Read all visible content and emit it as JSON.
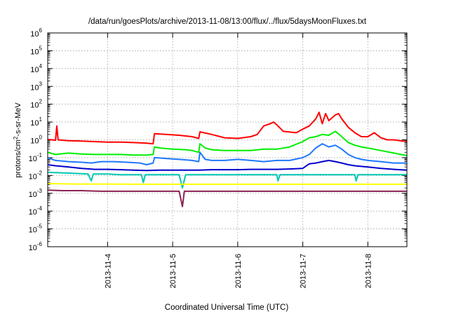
{
  "chart_data": {
    "type": "line",
    "title": "/data/run/goesPlots/archive/2013-11-08/13:00/flux/../flux/5daysMoonFluxes.txt",
    "xlabel": "Coordinated Universal Time (UTC)",
    "ylabel": {
      "prefix": "protons/cm",
      "sup": "2",
      "suffix": "-s-sr-MeV"
    },
    "x_tick_labels": [
      "2013-11-4",
      "2013-11-5",
      "2013-11-6",
      "2013-11-7",
      "2013-11-8"
    ],
    "x_ticks": [
      4,
      5,
      6,
      7,
      8
    ],
    "xlim": [
      3.08,
      8.6
    ],
    "y_scale": "log",
    "ylim_exp": [
      -6,
      6
    ],
    "y_tick_exponents": [
      -6,
      -5,
      -4,
      -3,
      -2,
      -1,
      0,
      1,
      2,
      3,
      4,
      5,
      6
    ],
    "grid": true,
    "series": [
      {
        "color": "#ff0000",
        "points": [
          [
            3.08,
            1.05
          ],
          [
            3.15,
            1.0
          ],
          [
            3.2,
            0.95
          ],
          [
            3.22,
            6.0
          ],
          [
            3.24,
            1.0
          ],
          [
            3.4,
            0.9
          ],
          [
            3.6,
            0.85
          ],
          [
            3.8,
            0.8
          ],
          [
            4.0,
            0.75
          ],
          [
            4.2,
            0.75
          ],
          [
            4.4,
            0.7
          ],
          [
            4.6,
            0.65
          ],
          [
            4.7,
            0.6
          ],
          [
            4.72,
            2.2
          ],
          [
            4.9,
            2.0
          ],
          [
            5.1,
            1.8
          ],
          [
            5.3,
            1.5
          ],
          [
            5.4,
            1.2
          ],
          [
            5.42,
            2.8
          ],
          [
            5.6,
            2.0
          ],
          [
            5.8,
            1.3
          ],
          [
            6.0,
            1.2
          ],
          [
            6.2,
            1.5
          ],
          [
            6.3,
            2.0
          ],
          [
            6.4,
            6.0
          ],
          [
            6.5,
            8.0
          ],
          [
            6.55,
            10.0
          ],
          [
            6.6,
            7.0
          ],
          [
            6.7,
            3.0
          ],
          [
            6.9,
            2.5
          ],
          [
            7.0,
            4.0
          ],
          [
            7.1,
            6.0
          ],
          [
            7.2,
            15.0
          ],
          [
            7.25,
            35.0
          ],
          [
            7.3,
            8.0
          ],
          [
            7.35,
            30.0
          ],
          [
            7.4,
            12.0
          ],
          [
            7.5,
            25.0
          ],
          [
            7.55,
            30.0
          ],
          [
            7.6,
            15.0
          ],
          [
            7.7,
            5.0
          ],
          [
            7.8,
            2.5
          ],
          [
            7.9,
            1.5
          ],
          [
            8.0,
            1.5
          ],
          [
            8.1,
            2.5
          ],
          [
            8.2,
            1.3
          ],
          [
            8.3,
            1.0
          ],
          [
            8.4,
            1.0
          ],
          [
            8.5,
            0.9
          ],
          [
            8.6,
            0.8
          ]
        ]
      },
      {
        "color": "#00ee00",
        "points": [
          [
            3.08,
            0.2
          ],
          [
            3.2,
            0.15
          ],
          [
            3.4,
            0.18
          ],
          [
            3.6,
            0.16
          ],
          [
            3.8,
            0.15
          ],
          [
            4.0,
            0.15
          ],
          [
            4.2,
            0.15
          ],
          [
            4.4,
            0.14
          ],
          [
            4.6,
            0.14
          ],
          [
            4.7,
            0.15
          ],
          [
            4.72,
            0.4
          ],
          [
            4.8,
            0.35
          ],
          [
            5.0,
            0.3
          ],
          [
            5.2,
            0.28
          ],
          [
            5.3,
            0.25
          ],
          [
            5.4,
            0.2
          ],
          [
            5.42,
            0.6
          ],
          [
            5.5,
            0.35
          ],
          [
            5.6,
            0.28
          ],
          [
            5.8,
            0.25
          ],
          [
            6.0,
            0.25
          ],
          [
            6.2,
            0.25
          ],
          [
            6.4,
            0.3
          ],
          [
            6.6,
            0.3
          ],
          [
            6.8,
            0.4
          ],
          [
            7.0,
            0.8
          ],
          [
            7.1,
            1.3
          ],
          [
            7.2,
            1.5
          ],
          [
            7.3,
            2.0
          ],
          [
            7.4,
            1.8
          ],
          [
            7.5,
            3.0
          ],
          [
            7.6,
            1.5
          ],
          [
            7.7,
            0.7
          ],
          [
            7.8,
            0.5
          ],
          [
            7.9,
            0.4
          ],
          [
            8.0,
            0.35
          ],
          [
            8.2,
            0.25
          ],
          [
            8.4,
            0.18
          ],
          [
            8.6,
            0.13
          ]
        ]
      },
      {
        "color": "#1e78ff",
        "points": [
          [
            3.08,
            0.1
          ],
          [
            3.2,
            0.07
          ],
          [
            3.4,
            0.06
          ],
          [
            3.6,
            0.055
          ],
          [
            3.75,
            0.05
          ],
          [
            3.9,
            0.06
          ],
          [
            4.1,
            0.06
          ],
          [
            4.3,
            0.055
          ],
          [
            4.5,
            0.05
          ],
          [
            4.6,
            0.04
          ],
          [
            4.7,
            0.05
          ],
          [
            4.72,
            0.1
          ],
          [
            4.9,
            0.09
          ],
          [
            5.1,
            0.08
          ],
          [
            5.3,
            0.07
          ],
          [
            5.4,
            0.06
          ],
          [
            5.42,
            0.2
          ],
          [
            5.5,
            0.08
          ],
          [
            5.6,
            0.07
          ],
          [
            5.8,
            0.07
          ],
          [
            6.0,
            0.08
          ],
          [
            6.2,
            0.07
          ],
          [
            6.4,
            0.06
          ],
          [
            6.6,
            0.07
          ],
          [
            6.8,
            0.07
          ],
          [
            7.0,
            0.1
          ],
          [
            7.1,
            0.15
          ],
          [
            7.2,
            0.35
          ],
          [
            7.3,
            0.6
          ],
          [
            7.4,
            0.4
          ],
          [
            7.5,
            0.5
          ],
          [
            7.6,
            0.3
          ],
          [
            7.7,
            0.15
          ],
          [
            7.8,
            0.1
          ],
          [
            7.9,
            0.08
          ],
          [
            8.0,
            0.07
          ],
          [
            8.2,
            0.06
          ],
          [
            8.4,
            0.05
          ],
          [
            8.6,
            0.05
          ]
        ]
      },
      {
        "color": "#0000cd",
        "points": [
          [
            3.08,
            0.04
          ],
          [
            3.2,
            0.035
          ],
          [
            3.4,
            0.03
          ],
          [
            3.6,
            0.025
          ],
          [
            3.8,
            0.022
          ],
          [
            4.0,
            0.022
          ],
          [
            4.2,
            0.021
          ],
          [
            4.4,
            0.02
          ],
          [
            4.6,
            0.019
          ],
          [
            4.8,
            0.02
          ],
          [
            5.0,
            0.02
          ],
          [
            5.2,
            0.02
          ],
          [
            5.4,
            0.02
          ],
          [
            5.6,
            0.021
          ],
          [
            5.8,
            0.021
          ],
          [
            6.0,
            0.021
          ],
          [
            6.2,
            0.022
          ],
          [
            6.4,
            0.022
          ],
          [
            6.6,
            0.022
          ],
          [
            6.8,
            0.023
          ],
          [
            7.0,
            0.025
          ],
          [
            7.1,
            0.045
          ],
          [
            7.2,
            0.05
          ],
          [
            7.3,
            0.06
          ],
          [
            7.4,
            0.07
          ],
          [
            7.5,
            0.06
          ],
          [
            7.6,
            0.05
          ],
          [
            7.7,
            0.04
          ],
          [
            7.8,
            0.035
          ],
          [
            8.0,
            0.03
          ],
          [
            8.2,
            0.025
          ],
          [
            8.4,
            0.022
          ],
          [
            8.6,
            0.02
          ]
        ]
      },
      {
        "color": "#00c8b4",
        "points": [
          [
            3.08,
            0.015
          ],
          [
            3.3,
            0.014
          ],
          [
            3.5,
            0.013
          ],
          [
            3.7,
            0.012
          ],
          [
            3.75,
            0.005
          ],
          [
            3.78,
            0.012
          ],
          [
            4.0,
            0.012
          ],
          [
            4.2,
            0.011
          ],
          [
            4.4,
            0.011
          ],
          [
            4.52,
            0.011
          ],
          [
            4.55,
            0.004
          ],
          [
            4.58,
            0.011
          ],
          [
            4.8,
            0.011
          ],
          [
            5.0,
            0.011
          ],
          [
            5.1,
            0.011
          ],
          [
            5.15,
            0.002
          ],
          [
            5.2,
            0.011
          ],
          [
            5.4,
            0.011
          ],
          [
            5.6,
            0.011
          ],
          [
            5.8,
            0.011
          ],
          [
            6.0,
            0.011
          ],
          [
            6.2,
            0.011
          ],
          [
            6.4,
            0.011
          ],
          [
            6.6,
            0.011
          ],
          [
            6.62,
            0.005
          ],
          [
            6.65,
            0.011
          ],
          [
            6.8,
            0.011
          ],
          [
            7.0,
            0.011
          ],
          [
            7.2,
            0.011
          ],
          [
            7.4,
            0.011
          ],
          [
            7.6,
            0.011
          ],
          [
            7.8,
            0.011
          ],
          [
            7.82,
            0.005
          ],
          [
            7.85,
            0.011
          ],
          [
            8.0,
            0.011
          ],
          [
            8.3,
            0.011
          ],
          [
            8.6,
            0.011
          ]
        ]
      },
      {
        "color": "#ffff00",
        "points": [
          [
            3.08,
            0.0035
          ],
          [
            3.5,
            0.0033
          ],
          [
            4.0,
            0.0033
          ],
          [
            4.5,
            0.0032
          ],
          [
            5.0,
            0.0032
          ],
          [
            5.5,
            0.0032
          ],
          [
            6.0,
            0.0032
          ],
          [
            6.5,
            0.0032
          ],
          [
            7.0,
            0.0032
          ],
          [
            7.5,
            0.0032
          ],
          [
            8.0,
            0.0032
          ],
          [
            8.6,
            0.0032
          ]
        ]
      },
      {
        "color": "#8b2252",
        "points": [
          [
            3.08,
            0.0015
          ],
          [
            3.3,
            0.0014
          ],
          [
            3.6,
            0.0014
          ],
          [
            3.9,
            0.0013
          ],
          [
            4.2,
            0.0013
          ],
          [
            4.5,
            0.0013
          ],
          [
            4.8,
            0.0013
          ],
          [
            5.1,
            0.0013
          ],
          [
            5.15,
            0.00018
          ],
          [
            5.18,
            0.0013
          ],
          [
            5.4,
            0.0013
          ],
          [
            5.7,
            0.0013
          ],
          [
            6.0,
            0.0013
          ],
          [
            6.3,
            0.0013
          ],
          [
            6.6,
            0.0013
          ],
          [
            6.9,
            0.0013
          ],
          [
            7.2,
            0.0013
          ],
          [
            7.5,
            0.0013
          ],
          [
            7.8,
            0.0013
          ],
          [
            8.1,
            0.0013
          ],
          [
            8.4,
            0.0013
          ],
          [
            8.6,
            0.0013
          ]
        ]
      }
    ]
  }
}
